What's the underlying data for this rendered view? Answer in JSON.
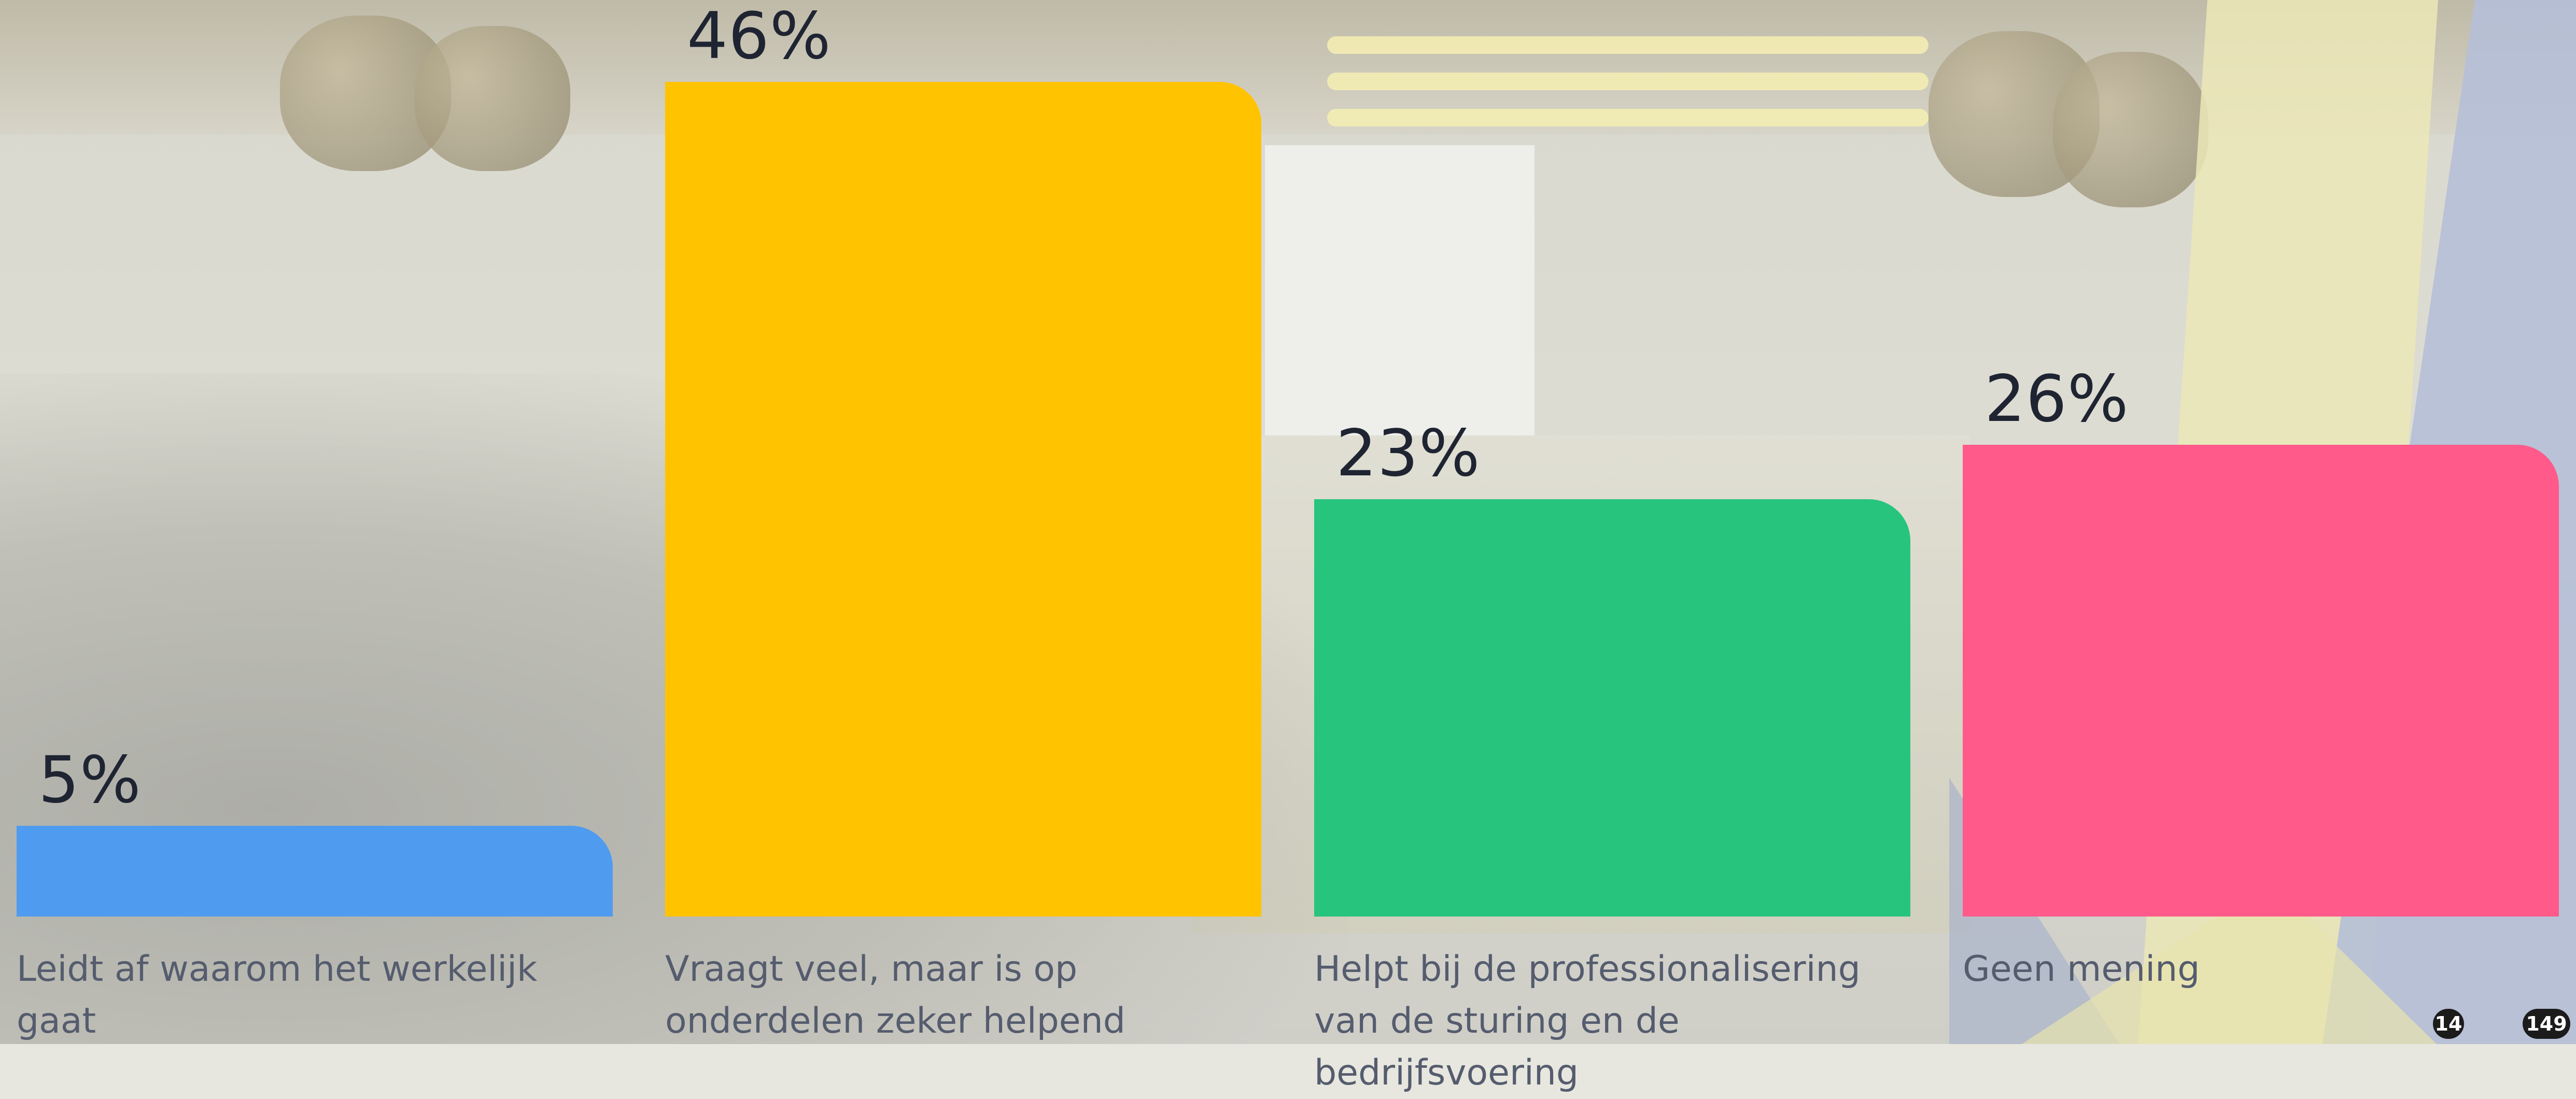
{
  "chart_data": {
    "type": "bar",
    "categories": [
      "Leidt af waarom het werkelijk gaat",
      "Vraagt veel, maar is op onderdelen zeker helpend",
      "Helpt bij de professionalisering van de sturing en de bedrijfsvoering",
      "Geen mening"
    ],
    "values": [
      5,
      46,
      23,
      26
    ],
    "value_labels": [
      "5%",
      "46%",
      "23%",
      "26%"
    ],
    "colors": [
      "#4f9bf0",
      "#ffc300",
      "#27c47d",
      "#ff5a8a"
    ],
    "ylim": [
      0,
      46
    ],
    "grid": false
  },
  "footer": {
    "badge_left": "14",
    "badge_right": "149"
  }
}
